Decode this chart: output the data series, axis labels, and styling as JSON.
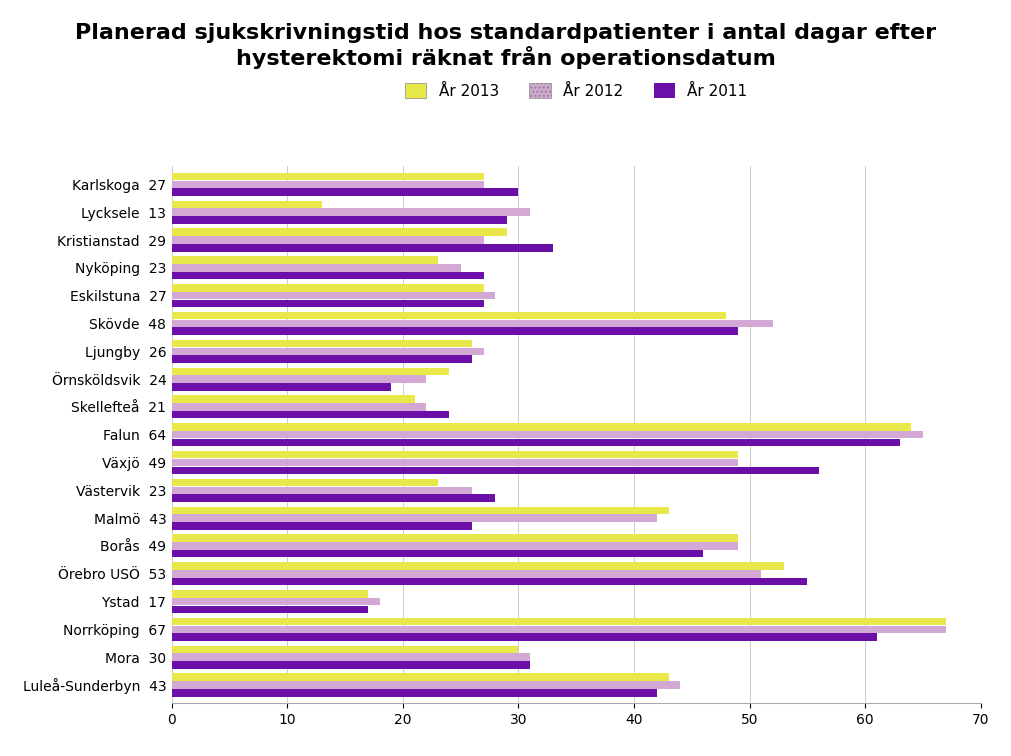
{
  "title": "Planerad sjukskrivningstid hos standardpatienter i antal dagar efter\nhysterektomi räknat från operationsdatum",
  "clinics": [
    "Karlskoga",
    "Lycksele",
    "Kristianstad",
    "Nyköping",
    "Eskilstuna",
    "Skövde",
    "Ljungby",
    "Örnsköldsvik",
    "Skellefteå",
    "Falun",
    "Växjö",
    "Västervik",
    "Malmö",
    "Borås",
    "Örebro USÖ",
    "Ystad",
    "Norrköping",
    "Mora",
    "Luleå-Sunderbyn"
  ],
  "labels_2013": [
    27,
    13,
    29,
    23,
    27,
    48,
    26,
    24,
    21,
    64,
    49,
    23,
    43,
    49,
    53,
    17,
    67,
    30,
    43
  ],
  "values_2013": [
    27,
    13,
    29,
    23,
    27,
    48,
    26,
    24,
    21,
    64,
    49,
    23,
    43,
    49,
    53,
    17,
    67,
    30,
    43
  ],
  "values_2012": [
    27,
    31,
    27,
    25,
    28,
    52,
    27,
    22,
    22,
    65,
    49,
    26,
    42,
    49,
    51,
    18,
    67,
    31,
    44
  ],
  "values_2011": [
    30,
    29,
    33,
    27,
    27,
    49,
    26,
    19,
    24,
    63,
    56,
    28,
    26,
    46,
    55,
    17,
    61,
    31,
    42
  ],
  "color_2013": "#e8e84a",
  "color_2012_face": "#d4a8d4",
  "color_2011": "#6b0fa8",
  "xlim_max": 70,
  "xticks": [
    0,
    10,
    20,
    30,
    40,
    50,
    60,
    70
  ],
  "legend_labels": [
    "År 2013",
    "År 2012",
    "År 2011"
  ],
  "background_color": "#ffffff",
  "title_fontsize": 16,
  "tick_fontsize": 10
}
